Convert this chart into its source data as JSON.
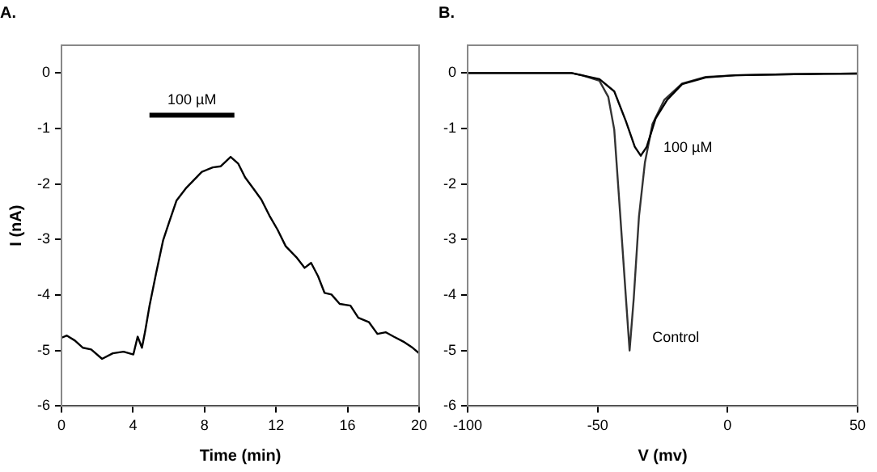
{
  "chart_data": [
    {
      "type": "line",
      "title": "A.",
      "xlabel": "Time (min)",
      "ylabel": "I (nA)",
      "xlim": [
        0,
        20
      ],
      "xticks": [
        0,
        4,
        8,
        12,
        16,
        20
      ],
      "ylim": [
        -6,
        0.5
      ],
      "yticks": [
        -6,
        -5,
        -4,
        -3,
        -2,
        -1,
        0
      ],
      "grid": false,
      "legend": false,
      "marker": "none",
      "line_style": "solid",
      "series": [
        {
          "name": "100 µM",
          "color": "#000000",
          "x": [
            4.92,
            9.67
          ],
          "values": [
            -0.76,
            -0.76
          ]
        },
        {
          "color": "#000000",
          "x": [
            0,
            0.3,
            0.75,
            1.2,
            1.66,
            2.27,
            2.87,
            3.47,
            4.02,
            4.26,
            4.5,
            4.68,
            4.92,
            5.29,
            5.68,
            6.04,
            6.43,
            6.95,
            7.4,
            7.85,
            8.46,
            8.91,
            9.46,
            9.88,
            10.27,
            10.73,
            11.18,
            11.63,
            12.08,
            12.54,
            13.14,
            13.6,
            13.96,
            14.35,
            14.71,
            15.1,
            15.56,
            16.16,
            16.6,
            17.2,
            17.67,
            18.13,
            18.58,
            19.18,
            19.64,
            20
          ],
          "values": [
            -4.77,
            -4.73,
            -4.82,
            -4.95,
            -4.98,
            -5.15,
            -5.05,
            -5.02,
            -5.07,
            -4.75,
            -4.95,
            -4.65,
            -4.2,
            -3.61,
            -3.02,
            -2.67,
            -2.3,
            -2.08,
            -1.93,
            -1.78,
            -1.7,
            -1.68,
            -1.51,
            -1.63,
            -1.88,
            -2.08,
            -2.28,
            -2.57,
            -2.82,
            -3.12,
            -3.32,
            -3.51,
            -3.42,
            -3.66,
            -3.96,
            -3.99,
            -4.16,
            -4.19,
            -4.41,
            -4.49,
            -4.7,
            -4.67,
            -4.75,
            -4.85,
            -4.95,
            -5.05
          ]
        }
      ]
    },
    {
      "type": "line",
      "title": "B.",
      "xlabel": "V (mv)",
      "xlim": [
        -100,
        50
      ],
      "xticks": [
        -100,
        -50,
        0,
        50
      ],
      "ylim": [
        -6,
        0.5
      ],
      "yticks": [
        -6,
        -5,
        -4,
        -3,
        -2,
        -1,
        0
      ],
      "grid": false,
      "legend": false,
      "marker": "none",
      "line_style": "solid",
      "series": [
        {
          "name": "100 µM",
          "color": "#000000",
          "x": [
            -100,
            -80,
            -60,
            -49.3,
            -43.6,
            -39.1,
            -35.7,
            -33.4,
            -31.1,
            -27.7,
            -23.2,
            -17.5,
            -8.4,
            3,
            25.7,
            50
          ],
          "values": [
            0,
            0,
            0,
            -0.11,
            -0.33,
            -0.87,
            -1.33,
            -1.49,
            -1.33,
            -0.82,
            -0.48,
            -0.2,
            -0.08,
            -0.04,
            -0.02,
            -0.01
          ]
        },
        {
          "name": "Control",
          "color": "#333333",
          "x": [
            -100,
            -80,
            -60,
            -56,
            -49.3,
            -45.9,
            -43.6,
            -41.4,
            -39.1,
            -37.7,
            -36.1,
            -34.1,
            -31.8,
            -28.9,
            -24.3,
            -17.5,
            -8.4,
            3,
            25.7,
            50
          ],
          "values": [
            0,
            0,
            0,
            -0.04,
            -0.14,
            -0.43,
            -1.02,
            -2.49,
            -4.06,
            -5,
            -4.06,
            -2.59,
            -1.61,
            -0.92,
            -0.48,
            -0.19,
            -0.07,
            -0.04,
            -0.02,
            -0.01
          ]
        }
      ]
    }
  ]
}
